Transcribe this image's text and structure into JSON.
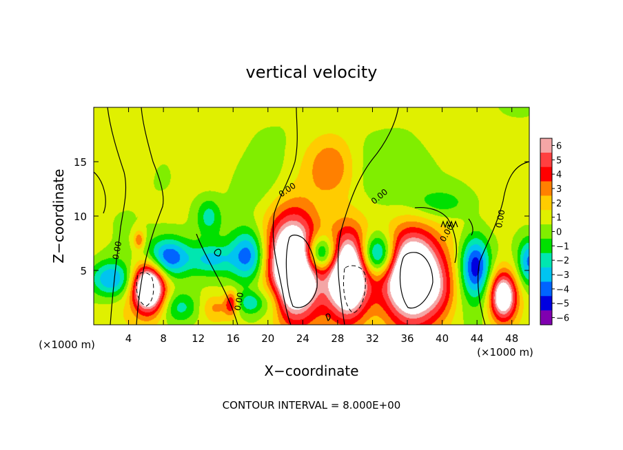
{
  "chart_data": {
    "type": "heatmap",
    "title": "vertical velocity",
    "xlabel": "X−coordinate",
    "ylabel": "Z−coordinate",
    "x_unit_left": "(×1000 m)",
    "x_unit_right": "(×1000 m)",
    "xlim": [
      0,
      50
    ],
    "ylim": [
      0,
      20
    ],
    "x_ticks": [
      4,
      8,
      12,
      16,
      20,
      24,
      28,
      32,
      36,
      40,
      44,
      48
    ],
    "y_ticks": [
      5,
      10,
      15
    ],
    "contour_labels": [
      {
        "text": "0.00",
        "x": 3.0,
        "y": 6.8,
        "angle": -80
      },
      {
        "text": "0.00",
        "x": 17.0,
        "y": 2.1,
        "angle": -80
      },
      {
        "text": "0.00",
        "x": 22.4,
        "y": 12.2,
        "angle": -35
      },
      {
        "text": "0.00",
        "x": 33.0,
        "y": 11.6,
        "angle": -40
      },
      {
        "text": "0.00",
        "x": 40.8,
        "y": 8.3,
        "angle": -60
      },
      {
        "text": "0.00",
        "x": 47.0,
        "y": 9.7,
        "angle": -80
      }
    ],
    "colorbar": {
      "ticks": [
        "6",
        "5",
        "4",
        "3",
        "2",
        "1",
        "0",
        "−1",
        "−2",
        "−3",
        "−4",
        "−5",
        "−6"
      ],
      "colors": [
        "#f4a6a6",
        "#ff4040",
        "#ff0000",
        "#ff8000",
        "#ffcc00",
        "#e0f000",
        "#80ee00",
        "#00e000",
        "#00e6b0",
        "#00c4f0",
        "#0064ff",
        "#0000e0",
        "#8000b0"
      ]
    },
    "field_base": 0.8,
    "field_blobs": [
      {
        "x": 23.0,
        "y": 5.2,
        "sx": 2.1,
        "sy": 3.3,
        "a": 11
      },
      {
        "x": 29.2,
        "y": 4.5,
        "sx": 1.7,
        "sy": 2.8,
        "a": 10
      },
      {
        "x": 36.6,
        "y": 4.6,
        "sx": 2.4,
        "sy": 2.9,
        "a": 11
      },
      {
        "x": 6.3,
        "y": 3.4,
        "sx": 1.3,
        "sy": 1.6,
        "a": 10
      },
      {
        "x": 47.0,
        "y": 2.6,
        "sx": 1.1,
        "sy": 1.6,
        "a": 8
      },
      {
        "x": 27.3,
        "y": 14.5,
        "sx": 2.0,
        "sy": 2.0,
        "a": 2.6
      },
      {
        "x": 15.8,
        "y": 2.0,
        "sx": 0.5,
        "sy": 0.8,
        "a": 3.5
      },
      {
        "x": 5.2,
        "y": 7.8,
        "sx": 0.45,
        "sy": 0.6,
        "a": 3.0
      },
      {
        "x": 14.0,
        "y": 1.6,
        "sx": 1.2,
        "sy": 0.8,
        "a": 1.8
      },
      {
        "x": 40.0,
        "y": 3.0,
        "sx": 1.3,
        "sy": 1.8,
        "a": 1.5
      },
      {
        "x": 2.0,
        "y": 4.2,
        "sx": 1.8,
        "sy": 1.2,
        "a": -4.5
      },
      {
        "x": 8.5,
        "y": 6.2,
        "sx": 1.8,
        "sy": 1.3,
        "a": -5.5
      },
      {
        "x": 17.8,
        "y": 6.4,
        "sx": 1.5,
        "sy": 1.7,
        "a": -5.0
      },
      {
        "x": 26.0,
        "y": 6.5,
        "sx": 1.4,
        "sy": 1.2,
        "a": -6.5
      },
      {
        "x": 32.6,
        "y": 6.4,
        "sx": 1.5,
        "sy": 1.4,
        "a": -6.5
      },
      {
        "x": 43.8,
        "y": 5.4,
        "sx": 1.2,
        "sy": 2.0,
        "a": -6.0
      },
      {
        "x": 13.5,
        "y": 6.0,
        "sx": 1.7,
        "sy": 1.0,
        "a": -3.0
      },
      {
        "x": 13.2,
        "y": 10.0,
        "sx": 1.0,
        "sy": 1.2,
        "a": -2.5
      },
      {
        "x": 18.0,
        "y": 2.0,
        "sx": 1.0,
        "sy": 0.7,
        "a": -3.0
      },
      {
        "x": 50.0,
        "y": 5.8,
        "sx": 0.9,
        "sy": 1.5,
        "a": -4.5
      },
      {
        "x": 10.0,
        "y": 1.6,
        "sx": 1.5,
        "sy": 1.0,
        "a": -2.5
      },
      {
        "x": 36.0,
        "y": 14.5,
        "sx": 3.0,
        "sy": 3.0,
        "a": -1.2
      },
      {
        "x": 18.0,
        "y": 12.8,
        "sx": 2.5,
        "sy": 2.2,
        "a": -1.1
      },
      {
        "x": 40.0,
        "y": 11.2,
        "sx": 2.5,
        "sy": 1.0,
        "a": -1.8
      },
      {
        "x": 20.5,
        "y": 2.3,
        "sx": 1.0,
        "sy": 1.3,
        "a": -2.0
      }
    ]
  },
  "footer": {
    "contour_interval": "CONTOUR INTERVAL = 8.000E+00"
  }
}
